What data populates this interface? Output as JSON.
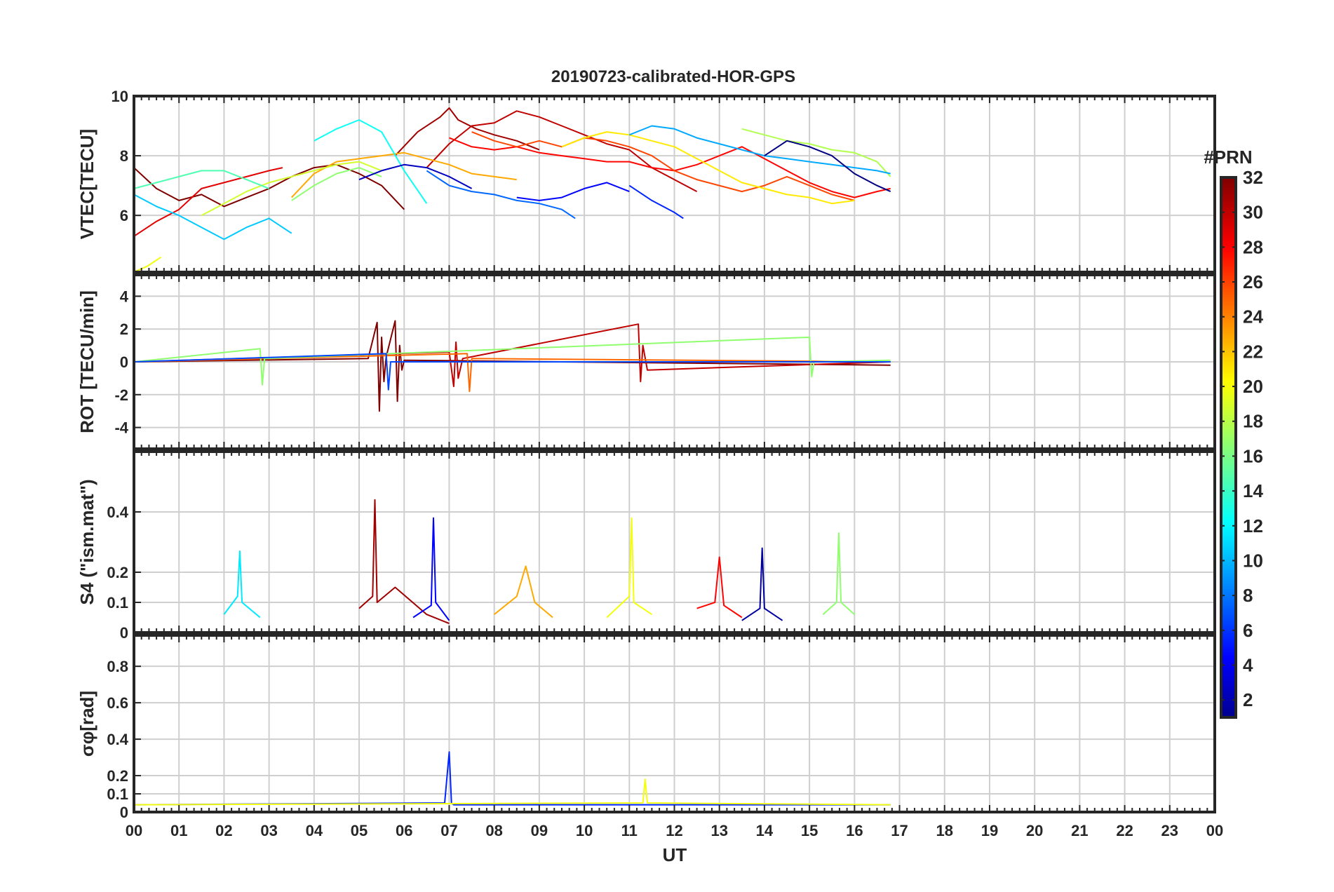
{
  "chart_data": {
    "type": "line",
    "title": "20190723-calibrated-HOR-GPS",
    "xlabel": "UT",
    "x_ticks": [
      "00",
      "01",
      "02",
      "03",
      "04",
      "05",
      "06",
      "07",
      "08",
      "09",
      "10",
      "11",
      "12",
      "13",
      "14",
      "15",
      "16",
      "17",
      "18",
      "19",
      "20",
      "21",
      "22",
      "23",
      "00"
    ],
    "xlim": [
      0,
      24
    ],
    "grid": true,
    "colorbar": {
      "title": "#PRN",
      "range": [
        1,
        32
      ],
      "ticks": [
        2,
        4,
        6,
        8,
        10,
        12,
        14,
        16,
        18,
        20,
        22,
        24,
        26,
        28,
        30,
        32
      ],
      "colormap": "jet"
    },
    "panels": [
      {
        "id": "vtec",
        "ylabel": "VTEC[TECU]",
        "ylim": [
          4.1,
          10
        ],
        "yticks": [
          6,
          8,
          10
        ],
        "series": [
          {
            "prn": 32,
            "x": [
              0.0,
              0.5,
              1.0,
              1.5,
              2.0,
              2.5,
              3.0,
              3.5,
              4.0,
              4.5,
              5.0,
              5.5,
              6.0
            ],
            "y": [
              7.6,
              6.9,
              6.5,
              6.7,
              6.3,
              6.6,
              6.9,
              7.3,
              7.6,
              7.7,
              7.4,
              7.0,
              6.2
            ]
          },
          {
            "prn": 31,
            "x": [
              5.8,
              6.3,
              6.8,
              7.0,
              7.2,
              7.6,
              8.0,
              8.5,
              9.0
            ],
            "y": [
              8.0,
              8.8,
              9.3,
              9.6,
              9.2,
              8.9,
              8.7,
              8.5,
              8.2
            ]
          },
          {
            "prn": 30,
            "x": [
              6.5,
              7.0,
              7.5,
              8.0,
              8.5,
              9.0,
              9.5,
              10.0,
              10.5,
              11.0,
              11.5,
              12.0,
              12.5
            ],
            "y": [
              7.6,
              8.4,
              9.0,
              9.1,
              9.5,
              9.3,
              9.0,
              8.7,
              8.4,
              8.2,
              7.6,
              7.2,
              6.8
            ]
          },
          {
            "prn": 29,
            "x": [
              0.0,
              0.5,
              1.0,
              1.5,
              2.0,
              2.5,
              3.0,
              3.3
            ],
            "y": [
              5.3,
              5.8,
              6.2,
              6.9,
              7.1,
              7.3,
              7.5,
              7.6
            ]
          },
          {
            "prn": 28,
            "x": [
              7.0,
              7.5,
              8.0,
              8.5,
              9.0,
              9.5,
              10.0,
              10.5,
              11.0,
              11.5,
              12.0,
              12.5,
              13.0,
              13.5,
              14.0,
              14.5,
              15.0,
              15.5,
              16.0,
              16.5,
              16.8
            ],
            "y": [
              8.6,
              8.3,
              8.2,
              8.3,
              8.1,
              8.0,
              7.9,
              7.8,
              7.8,
              7.6,
              7.5,
              7.7,
              8.0,
              8.3,
              7.9,
              7.5,
              7.1,
              6.8,
              6.6,
              6.8,
              6.9
            ]
          },
          {
            "prn": 26,
            "x": [
              7.5,
              8.0,
              8.5,
              9.0,
              9.5,
              10.0,
              10.5,
              11.0,
              11.5,
              12.0,
              12.5,
              13.0,
              13.5,
              14.0,
              14.5,
              15.0,
              15.5,
              16.0
            ],
            "y": [
              8.8,
              8.5,
              8.3,
              8.5,
              8.3,
              8.6,
              8.5,
              8.3,
              8.0,
              7.5,
              7.2,
              7.0,
              6.8,
              7.0,
              7.3,
              7.0,
              6.7,
              6.5
            ]
          },
          {
            "prn": 23,
            "x": [
              3.5,
              4.0,
              4.5,
              5.0,
              5.5,
              6.0,
              6.5,
              7.0,
              7.5,
              8.0,
              8.5
            ],
            "y": [
              6.6,
              7.4,
              7.8,
              7.9,
              8.0,
              8.1,
              7.9,
              7.7,
              7.4,
              7.3,
              7.2
            ]
          },
          {
            "prn": 21,
            "x": [
              9.5,
              10.0,
              10.5,
              11.0,
              11.5,
              12.0,
              12.5,
              13.0,
              13.5,
              14.0,
              14.5,
              15.0,
              15.5,
              16.0
            ],
            "y": [
              8.3,
              8.6,
              8.8,
              8.7,
              8.5,
              8.3,
              7.9,
              7.5,
              7.1,
              6.9,
              6.7,
              6.6,
              6.4,
              6.5
            ]
          },
          {
            "prn": 20,
            "x": [
              0.0,
              0.3,
              0.6
            ],
            "y": [
              4.1,
              4.3,
              4.6
            ]
          },
          {
            "prn": 19,
            "x": [
              1.5,
              2.0,
              2.5,
              3.0,
              3.5,
              4.0,
              4.5,
              5.0,
              5.5
            ],
            "y": [
              6.0,
              6.4,
              6.8,
              7.1,
              7.3,
              7.5,
              7.7,
              7.8,
              7.5
            ]
          },
          {
            "prn": 18,
            "x": [
              13.5,
              14.0,
              14.5,
              15.0,
              15.5,
              16.0,
              16.5,
              16.8
            ],
            "y": [
              8.9,
              8.7,
              8.5,
              8.4,
              8.2,
              8.1,
              7.8,
              7.3
            ]
          },
          {
            "prn": 17,
            "x": [
              3.5,
              4.0,
              4.5,
              5.0,
              5.5
            ],
            "y": [
              6.5,
              7.0,
              7.4,
              7.6,
              7.3
            ]
          },
          {
            "prn": 15,
            "x": [
              0.0,
              0.5,
              1.0,
              1.5,
              2.0,
              2.5,
              3.0
            ],
            "y": [
              6.9,
              7.1,
              7.3,
              7.5,
              7.5,
              7.2,
              6.9
            ]
          },
          {
            "prn": 13,
            "x": [
              4.0,
              4.5,
              5.0,
              5.5,
              6.0,
              6.5
            ],
            "y": [
              8.5,
              8.9,
              9.2,
              8.8,
              7.5,
              6.4
            ]
          },
          {
            "prn": 11,
            "x": [
              0.0,
              0.5,
              1.0,
              1.5,
              2.0,
              2.5,
              3.0,
              3.5
            ],
            "y": [
              6.7,
              6.3,
              6.0,
              5.6,
              5.2,
              5.6,
              5.9,
              5.4
            ]
          },
          {
            "prn": 10,
            "x": [
              11.0,
              11.5,
              12.0,
              12.5,
              13.0,
              13.5,
              14.0,
              14.5,
              15.0,
              15.5,
              16.0,
              16.5,
              16.8
            ],
            "y": [
              8.7,
              9.0,
              8.9,
              8.6,
              8.4,
              8.2,
              8.0,
              7.9,
              7.8,
              7.7,
              7.6,
              7.5,
              7.4
            ]
          },
          {
            "prn": 8,
            "x": [
              6.5,
              7.0,
              7.5,
              8.0,
              8.5,
              9.0,
              9.5,
              9.8
            ],
            "y": [
              7.5,
              7.0,
              6.8,
              6.7,
              6.5,
              6.4,
              6.2,
              5.9
            ]
          },
          {
            "prn": 6,
            "x": [
              11.0,
              11.5,
              12.0,
              12.2
            ],
            "y": [
              7.0,
              6.5,
              6.1,
              5.9
            ]
          },
          {
            "prn": 5,
            "x": [
              8.5,
              9.0,
              9.5,
              10.0,
              10.5,
              11.0
            ],
            "y": [
              6.6,
              6.5,
              6.6,
              6.9,
              7.1,
              6.8
            ]
          },
          {
            "prn": 3,
            "x": [
              5.0,
              5.5,
              6.0,
              6.5,
              7.0,
              7.5
            ],
            "y": [
              7.2,
              7.5,
              7.7,
              7.6,
              7.3,
              6.9
            ]
          },
          {
            "prn": 1,
            "x": [
              14.0,
              14.5,
              15.0,
              15.5,
              16.0,
              16.5,
              16.8
            ],
            "y": [
              8.0,
              8.5,
              8.3,
              8.0,
              7.4,
              7.0,
              6.8
            ]
          }
        ]
      },
      {
        "id": "rot",
        "ylabel": "ROT [TECU/min]",
        "ylim": [
          -5.3,
          5.3
        ],
        "yticks": [
          -4,
          -2,
          0,
          2,
          4
        ],
        "series": [
          {
            "prn": 32,
            "x": [
              0.0,
              5.2,
              5.4,
              5.45,
              5.5,
              5.55,
              5.6,
              5.8,
              5.85,
              5.9,
              5.95,
              6.0,
              16.8
            ],
            "y": [
              0.0,
              0.2,
              2.4,
              -3.0,
              1.5,
              -1.2,
              0.3,
              2.5,
              -2.4,
              1.0,
              -0.5,
              0.1,
              -0.2
            ]
          },
          {
            "prn": 30,
            "x": [
              0.0,
              7.0,
              7.1,
              7.15,
              7.2,
              7.3,
              11.2,
              11.25,
              11.3,
              11.4,
              16.8
            ],
            "y": [
              0.0,
              0.6,
              -1.5,
              1.2,
              -1.0,
              0.2,
              2.3,
              -1.2,
              1.0,
              -0.5,
              0.0
            ]
          },
          {
            "prn": 25,
            "x": [
              0.0,
              7.4,
              7.45,
              7.5,
              16.8
            ],
            "y": [
              0.0,
              0.5,
              -1.8,
              0.2,
              0.0
            ]
          },
          {
            "prn": 17,
            "x": [
              0.0,
              2.8,
              2.85,
              2.9,
              15.0,
              15.05,
              15.1,
              16.8
            ],
            "y": [
              0.0,
              0.8,
              -1.4,
              0.2,
              1.5,
              -0.9,
              0.0,
              0.1
            ]
          },
          {
            "prn": 7,
            "x": [
              0.0,
              5.6,
              5.65,
              5.7,
              16.8
            ],
            "y": [
              0.0,
              0.5,
              -1.7,
              0.0,
              0.0
            ]
          }
        ]
      },
      {
        "id": "s4",
        "ylabel": "S4 (\"ism.mat\")",
        "ylim": [
          0,
          0.6
        ],
        "yticks": [
          0,
          0.1,
          0.2,
          0.4
        ],
        "series": [
          {
            "prn": 31,
            "x": [
              5.0,
              5.3,
              5.35,
              5.4,
              5.8,
              6.5,
              7.0
            ],
            "y": [
              0.08,
              0.12,
              0.44,
              0.1,
              0.15,
              0.06,
              0.03
            ]
          },
          {
            "prn": 28,
            "x": [
              12.5,
              12.9,
              13.0,
              13.1,
              13.5
            ],
            "y": [
              0.08,
              0.1,
              0.25,
              0.09,
              0.05
            ]
          },
          {
            "prn": 23,
            "x": [
              8.0,
              8.5,
              8.7,
              8.9,
              9.3
            ],
            "y": [
              0.06,
              0.12,
              0.22,
              0.1,
              0.05
            ]
          },
          {
            "prn": 20,
            "x": [
              10.5,
              11.0,
              11.05,
              11.1,
              11.5
            ],
            "y": [
              0.05,
              0.12,
              0.38,
              0.1,
              0.06
            ]
          },
          {
            "prn": 17,
            "x": [
              15.3,
              15.6,
              15.65,
              15.7,
              16.0
            ],
            "y": [
              0.06,
              0.1,
              0.33,
              0.1,
              0.06
            ]
          },
          {
            "prn": 12,
            "x": [
              2.0,
              2.3,
              2.35,
              2.4,
              2.8
            ],
            "y": [
              0.06,
              0.12,
              0.27,
              0.1,
              0.05
            ]
          },
          {
            "prn": 5,
            "x": [
              6.2,
              6.6,
              6.65,
              6.7,
              7.0
            ],
            "y": [
              0.05,
              0.09,
              0.38,
              0.1,
              0.04
            ]
          },
          {
            "prn": 2,
            "x": [
              13.5,
              13.9,
              13.95,
              14.0,
              14.4
            ],
            "y": [
              0.04,
              0.08,
              0.28,
              0.08,
              0.04
            ]
          }
        ]
      },
      {
        "id": "sigphi",
        "ylabel": "σφ[rad]",
        "ylim": [
          0,
          0.97
        ],
        "yticks": [
          0,
          0.1,
          0.2,
          0.4,
          0.6,
          0.8
        ],
        "series": [
          {
            "prn": 6,
            "x": [
              0.0,
              6.9,
              7.0,
              7.05,
              7.1,
              16.8
            ],
            "y": [
              0.04,
              0.05,
              0.33,
              0.05,
              0.04,
              0.04
            ]
          },
          {
            "prn": 20,
            "x": [
              0.0,
              11.3,
              11.35,
              11.4,
              16.8
            ],
            "y": [
              0.04,
              0.05,
              0.18,
              0.05,
              0.04
            ]
          }
        ]
      }
    ]
  }
}
